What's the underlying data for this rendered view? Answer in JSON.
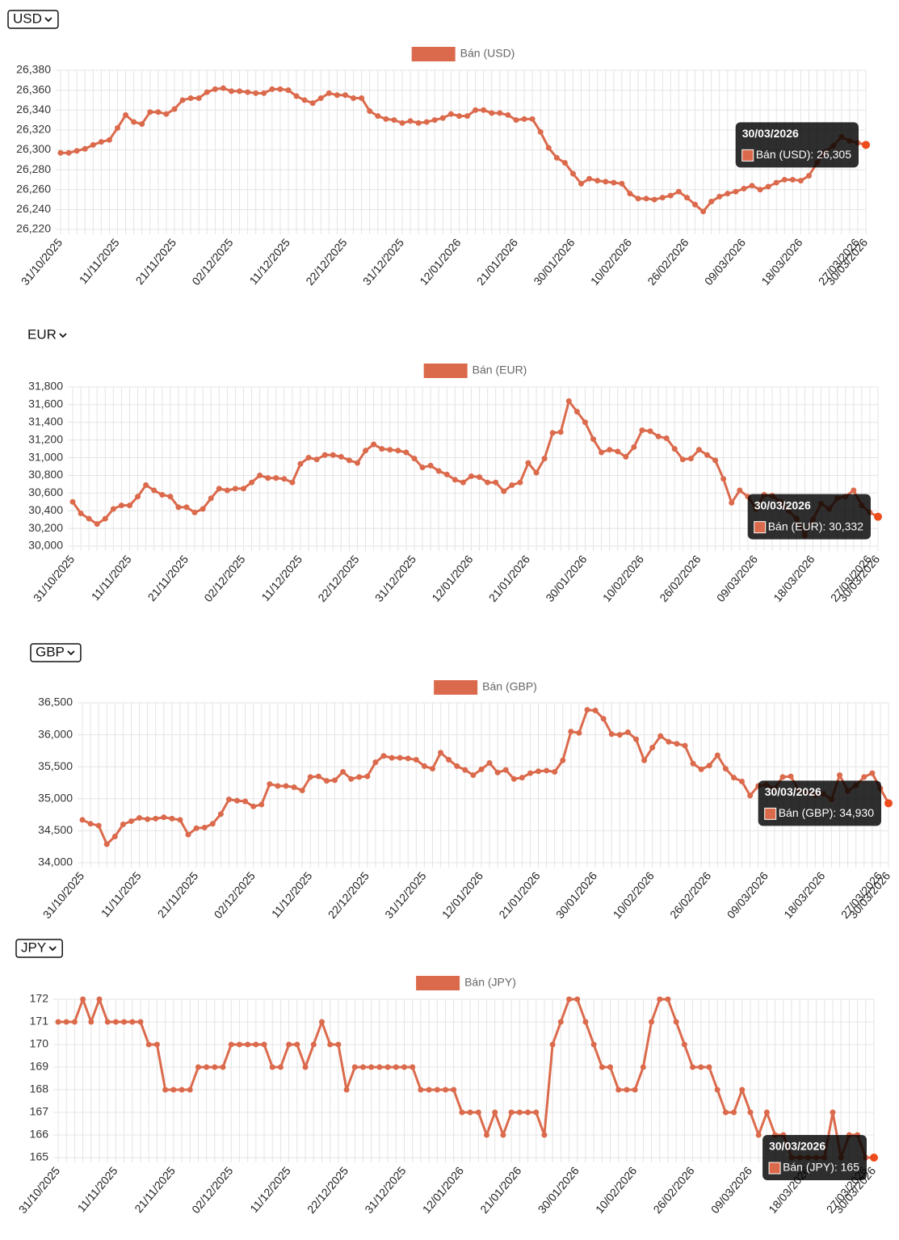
{
  "chart_data": [
    {
      "type": "line",
      "currency": "USD",
      "grid": true,
      "ylim": [
        26220,
        26380
      ],
      "yticks": [
        {
          "value": 26220,
          "label": "26,220"
        },
        {
          "value": 26240,
          "label": "26,240"
        },
        {
          "value": 26260,
          "label": "26,260"
        },
        {
          "value": 26280,
          "label": "26,280"
        },
        {
          "value": 26300,
          "label": "26,300"
        },
        {
          "value": 26320,
          "label": "26,320"
        },
        {
          "value": 26340,
          "label": "26,340"
        },
        {
          "value": 26360,
          "label": "26,360"
        },
        {
          "value": 26380,
          "label": "26,380"
        }
      ],
      "categories": [
        "31/10/2025",
        null,
        null,
        null,
        null,
        null,
        null,
        "11/11/2025",
        null,
        null,
        null,
        null,
        null,
        null,
        "21/11/2025",
        null,
        null,
        null,
        null,
        null,
        null,
        "02/12/2025",
        null,
        null,
        null,
        null,
        null,
        null,
        "11/12/2025",
        null,
        null,
        null,
        null,
        null,
        null,
        "22/12/2025",
        null,
        null,
        null,
        null,
        null,
        null,
        "31/12/2025",
        null,
        null,
        null,
        null,
        null,
        null,
        "12/01/2026",
        null,
        null,
        null,
        null,
        null,
        null,
        "21/01/2026",
        null,
        null,
        null,
        null,
        null,
        null,
        "30/01/2026",
        null,
        null,
        null,
        null,
        null,
        null,
        "10/02/2026",
        null,
        null,
        null,
        null,
        null,
        null,
        "26/02/2026",
        null,
        null,
        null,
        null,
        null,
        null,
        "09/03/2026",
        null,
        null,
        null,
        null,
        null,
        null,
        "18/03/2026",
        null,
        null,
        null,
        null,
        null,
        null,
        "27/03/2026",
        "30/03/2026"
      ],
      "series": [
        {
          "name": "Bán (USD)",
          "color": "#db6a4c",
          "values": [
            26297,
            26297,
            26299,
            26301,
            26305,
            26308,
            26310,
            26322,
            26335,
            26328,
            26326,
            26338,
            26338,
            26336,
            26341,
            26350,
            26352,
            26352,
            26358,
            26361,
            26362,
            26359,
            26359,
            26358,
            26357,
            26357,
            26361,
            26361,
            26360,
            26354,
            26350,
            26347,
            26352,
            26357,
            26355,
            26355,
            26352,
            26352,
            26339,
            26334,
            26331,
            26330,
            26327,
            26329,
            26327,
            26328,
            26330,
            26332,
            26336,
            26334,
            26334,
            26340,
            26340,
            26337,
            26337,
            26335,
            26330,
            26331,
            26331,
            26318,
            26302,
            26292,
            26287,
            26276,
            26266,
            26271,
            26269,
            26268,
            26267,
            26266,
            26256,
            26251,
            26251,
            26250,
            26252,
            26254,
            26258,
            26252,
            26245,
            26238,
            26248,
            26253,
            26256,
            26258,
            26261,
            26264,
            26260,
            26263,
            26267,
            26270,
            26270,
            26269,
            26274,
            26287,
            26298,
            26304,
            26313,
            26309,
            26307,
            26305
          ]
        }
      ],
      "tooltip": {
        "title": "30/03/2026",
        "label": "Bán (USD): 26,305"
      }
    },
    {
      "type": "line",
      "currency": "EUR",
      "grid": true,
      "ylim": [
        30000,
        31800
      ],
      "yticks": [
        {
          "value": 30000,
          "label": "30,000"
        },
        {
          "value": 30200,
          "label": "30,200"
        },
        {
          "value": 30400,
          "label": "30,400"
        },
        {
          "value": 30600,
          "label": "30,600"
        },
        {
          "value": 30800,
          "label": "30,800"
        },
        {
          "value": 31000,
          "label": "31,000"
        },
        {
          "value": 31200,
          "label": "31,200"
        },
        {
          "value": 31400,
          "label": "31,400"
        },
        {
          "value": 31600,
          "label": "31,600"
        },
        {
          "value": 31800,
          "label": "31,800"
        }
      ],
      "categories": [
        "31/10/2025",
        null,
        null,
        null,
        null,
        null,
        null,
        "11/11/2025",
        null,
        null,
        null,
        null,
        null,
        null,
        "21/11/2025",
        null,
        null,
        null,
        null,
        null,
        null,
        "02/12/2025",
        null,
        null,
        null,
        null,
        null,
        null,
        "11/12/2025",
        null,
        null,
        null,
        null,
        null,
        null,
        "22/12/2025",
        null,
        null,
        null,
        null,
        null,
        null,
        "31/12/2025",
        null,
        null,
        null,
        null,
        null,
        null,
        "12/01/2026",
        null,
        null,
        null,
        null,
        null,
        null,
        "21/01/2026",
        null,
        null,
        null,
        null,
        null,
        null,
        "30/01/2026",
        null,
        null,
        null,
        null,
        null,
        null,
        "10/02/2026",
        null,
        null,
        null,
        null,
        null,
        null,
        "26/02/2026",
        null,
        null,
        null,
        null,
        null,
        null,
        "09/03/2026",
        null,
        null,
        null,
        null,
        null,
        null,
        "18/03/2026",
        null,
        null,
        null,
        null,
        null,
        null,
        "27/03/2026",
        "30/03/2026"
      ],
      "series": [
        {
          "name": "Bán (EUR)",
          "color": "#db6a4c",
          "values": [
            30500,
            30370,
            30310,
            30250,
            30310,
            30420,
            30460,
            30460,
            30560,
            30690,
            30630,
            30580,
            30560,
            30440,
            30440,
            30380,
            30420,
            30540,
            30650,
            30630,
            30650,
            30650,
            30720,
            30800,
            30770,
            30770,
            30760,
            30720,
            30930,
            31000,
            30980,
            31030,
            31030,
            31010,
            30970,
            30940,
            31080,
            31150,
            31100,
            31090,
            31080,
            31060,
            30990,
            30890,
            30910,
            30850,
            30810,
            30750,
            30720,
            30790,
            30780,
            30720,
            30720,
            30620,
            30690,
            30720,
            30940,
            30830,
            30990,
            31280,
            31290,
            31640,
            31520,
            31400,
            31210,
            31060,
            31090,
            31070,
            31010,
            31120,
            31310,
            31300,
            31240,
            31220,
            31100,
            30980,
            30990,
            31090,
            31030,
            30970,
            30760,
            30490,
            30630,
            30560,
            30420,
            30580,
            30570,
            30500,
            30400,
            30310,
            30120,
            30300,
            30480,
            30420,
            30540,
            30560,
            30630,
            30460,
            30380,
            30332
          ]
        }
      ],
      "tooltip": {
        "title": "30/03/2026",
        "label": "Bán (EUR): 30,332"
      }
    },
    {
      "type": "line",
      "currency": "GBP",
      "grid": true,
      "ylim": [
        34000,
        36500
      ],
      "yticks": [
        {
          "value": 34000,
          "label": "34,000"
        },
        {
          "value": 34500,
          "label": "34,500"
        },
        {
          "value": 35000,
          "label": "35,000"
        },
        {
          "value": 35500,
          "label": "35,500"
        },
        {
          "value": 36000,
          "label": "36,000"
        },
        {
          "value": 36500,
          "label": "36,500"
        }
      ],
      "categories": [
        "31/10/2025",
        null,
        null,
        null,
        null,
        null,
        null,
        "11/11/2025",
        null,
        null,
        null,
        null,
        null,
        null,
        "21/11/2025",
        null,
        null,
        null,
        null,
        null,
        null,
        "02/12/2025",
        null,
        null,
        null,
        null,
        null,
        null,
        "11/12/2025",
        null,
        null,
        null,
        null,
        null,
        null,
        "22/12/2025",
        null,
        null,
        null,
        null,
        null,
        null,
        "31/12/2025",
        null,
        null,
        null,
        null,
        null,
        null,
        "12/01/2026",
        null,
        null,
        null,
        null,
        null,
        null,
        "21/01/2026",
        null,
        null,
        null,
        null,
        null,
        null,
        "30/01/2026",
        null,
        null,
        null,
        null,
        null,
        null,
        "10/02/2026",
        null,
        null,
        null,
        null,
        null,
        null,
        "26/02/2026",
        null,
        null,
        null,
        null,
        null,
        null,
        "09/03/2026",
        null,
        null,
        null,
        null,
        null,
        null,
        "18/03/2026",
        null,
        null,
        null,
        null,
        null,
        null,
        "27/03/2026",
        "30/03/2026"
      ],
      "series": [
        {
          "name": "Bán (GBP)",
          "color": "#db6a4c",
          "values": [
            34670,
            34610,
            34580,
            34290,
            34410,
            34600,
            34650,
            34700,
            34680,
            34690,
            34710,
            34690,
            34670,
            34440,
            34540,
            34550,
            34610,
            34760,
            34990,
            34970,
            34960,
            34880,
            34910,
            35230,
            35200,
            35200,
            35180,
            35130,
            35340,
            35350,
            35280,
            35290,
            35420,
            35310,
            35340,
            35350,
            35570,
            35670,
            35640,
            35640,
            35630,
            35610,
            35510,
            35470,
            35720,
            35610,
            35510,
            35450,
            35370,
            35460,
            35560,
            35410,
            35450,
            35310,
            35330,
            35400,
            35430,
            35440,
            35420,
            35600,
            36050,
            36030,
            36390,
            36380,
            36250,
            36010,
            36000,
            36040,
            35930,
            35600,
            35800,
            35980,
            35890,
            35860,
            35830,
            35550,
            35460,
            35520,
            35680,
            35470,
            35330,
            35270,
            35050,
            35200,
            35220,
            35160,
            35340,
            35350,
            35130,
            35100,
            35060,
            35080,
            34990,
            35370,
            35120,
            35210,
            35340,
            35400,
            35160,
            34930
          ]
        }
      ],
      "tooltip": {
        "title": "30/03/2026",
        "label": "Bán (GBP): 34,930"
      }
    },
    {
      "type": "line",
      "currency": "JPY",
      "grid": true,
      "ylim": [
        165,
        172
      ],
      "yticks": [
        165,
        166,
        167,
        168,
        169,
        170,
        171,
        172
      ],
      "categories": [
        "31/10/2025",
        null,
        null,
        null,
        null,
        null,
        null,
        "11/11/2025",
        null,
        null,
        null,
        null,
        null,
        null,
        "21/11/2025",
        null,
        null,
        null,
        null,
        null,
        null,
        "02/12/2025",
        null,
        null,
        null,
        null,
        null,
        null,
        "11/12/2025",
        null,
        null,
        null,
        null,
        null,
        null,
        "22/12/2025",
        null,
        null,
        null,
        null,
        null,
        null,
        "31/12/2025",
        null,
        null,
        null,
        null,
        null,
        null,
        "12/01/2026",
        null,
        null,
        null,
        null,
        null,
        null,
        "21/01/2026",
        null,
        null,
        null,
        null,
        null,
        null,
        "30/01/2026",
        null,
        null,
        null,
        null,
        null,
        null,
        "10/02/2026",
        null,
        null,
        null,
        null,
        null,
        null,
        "26/02/2026",
        null,
        null,
        null,
        null,
        null,
        null,
        "09/03/2026",
        null,
        null,
        null,
        null,
        null,
        null,
        "18/03/2026",
        null,
        null,
        null,
        null,
        null,
        null,
        "27/03/2026",
        "30/03/2026"
      ],
      "series": [
        {
          "name": "Bán (JPY)",
          "color": "#db6a4c",
          "values": [
            171,
            171,
            171,
            172,
            171,
            172,
            171,
            171,
            171,
            171,
            171,
            170,
            170,
            168,
            168,
            168,
            168,
            169,
            169,
            169,
            169,
            170,
            170,
            170,
            170,
            170,
            169,
            169,
            170,
            170,
            169,
            170,
            171,
            170,
            170,
            168,
            169,
            169,
            169,
            169,
            169,
            169,
            169,
            169,
            168,
            168,
            168,
            168,
            168,
            167,
            167,
            167,
            166,
            167,
            166,
            167,
            167,
            167,
            167,
            166,
            170,
            171,
            172,
            172,
            171,
            170,
            169,
            169,
            168,
            168,
            168,
            169,
            171,
            172,
            172,
            171,
            170,
            169,
            169,
            169,
            168,
            167,
            167,
            168,
            167,
            166,
            167,
            166,
            166,
            165,
            165,
            165,
            165,
            165,
            167,
            165,
            166,
            166,
            165,
            165
          ]
        }
      ],
      "tooltip": {
        "title": "30/03/2026",
        "label": "Bán (JPY): 165"
      }
    }
  ]
}
